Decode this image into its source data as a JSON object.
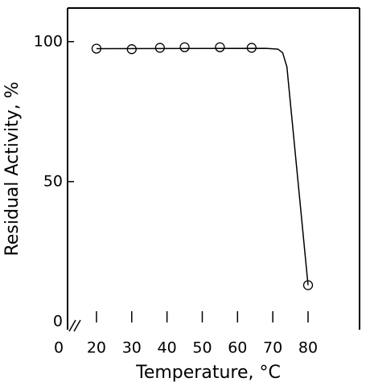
{
  "chart_data": {
    "type": "line",
    "xlabel": "Temperature, °C",
    "ylabel": "Residual Activity, %",
    "series": [
      {
        "x": [
          20,
          30,
          38,
          45,
          55,
          64,
          80
        ],
        "values": [
          97.5,
          97.3,
          97.8,
          98,
          98,
          97.8,
          13
        ],
        "color": "#000000",
        "marker": "circle",
        "line": false
      },
      {
        "x": [
          20,
          68,
          71.5,
          72.8,
          74,
          80
        ],
        "values": [
          97.5,
          97.6,
          97.3,
          96,
          91,
          13
        ],
        "color": "#000000",
        "marker": "none",
        "line": true
      }
    ],
    "xlim": [
      11.8,
      94.6
    ],
    "ylim": [
      -2.9,
      112
    ],
    "xticks": [
      20,
      30,
      40,
      50,
      60,
      70,
      80
    ],
    "x_break_label": "0",
    "yticks": [
      0,
      50,
      100
    ]
  }
}
